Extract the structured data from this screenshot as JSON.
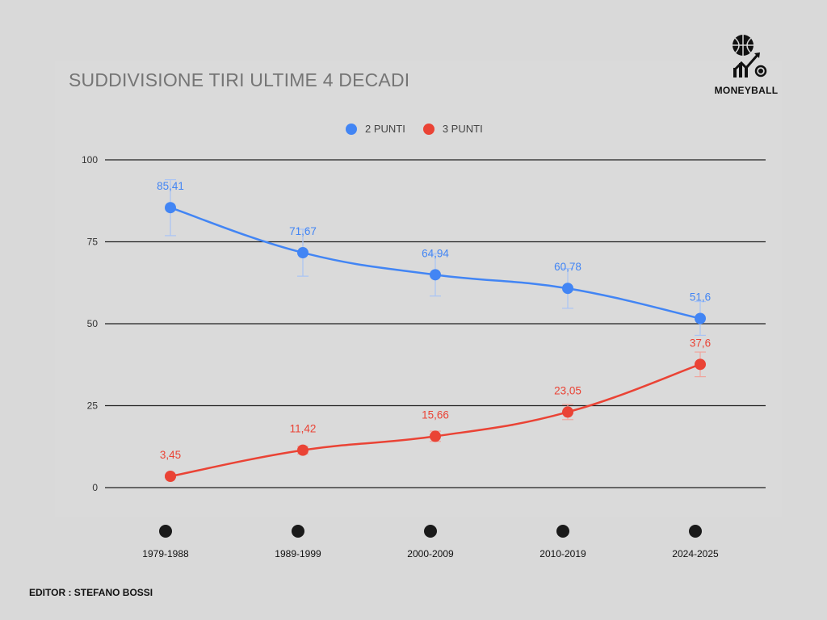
{
  "chart_data": {
    "type": "line",
    "title": "SUDDIVISIONE TIRI ULTIME 4 DECADI",
    "categories": [
      "1979-1988",
      "1989-1999",
      "2000-2009",
      "2010-2019",
      "2024-2025"
    ],
    "series": [
      {
        "name": "2 PUNTI",
        "color": "#4285f4",
        "values": [
          85.41,
          71.67,
          64.94,
          60.78,
          51.6
        ],
        "labels": [
          "85,41",
          "71,67",
          "64,94",
          "60,78",
          "51,6"
        ]
      },
      {
        "name": "3 PUNTI",
        "color": "#ea4335",
        "values": [
          3.45,
          11.42,
          15.66,
          23.05,
          37.6
        ],
        "labels": [
          "3,45",
          "11,42",
          "15,66",
          "23,05",
          "37,6"
        ]
      }
    ],
    "error_bars_fraction": 0.1,
    "yticks": [
      0,
      25,
      50,
      75,
      100
    ],
    "ylim": [
      0,
      100
    ],
    "grid": true,
    "legend": "top-center",
    "xlabel": "",
    "ylabel": ""
  },
  "logo": {
    "text": "MONEYBALL"
  },
  "footer": {
    "editor": "EDITOR : STEFANO BOSSI"
  }
}
